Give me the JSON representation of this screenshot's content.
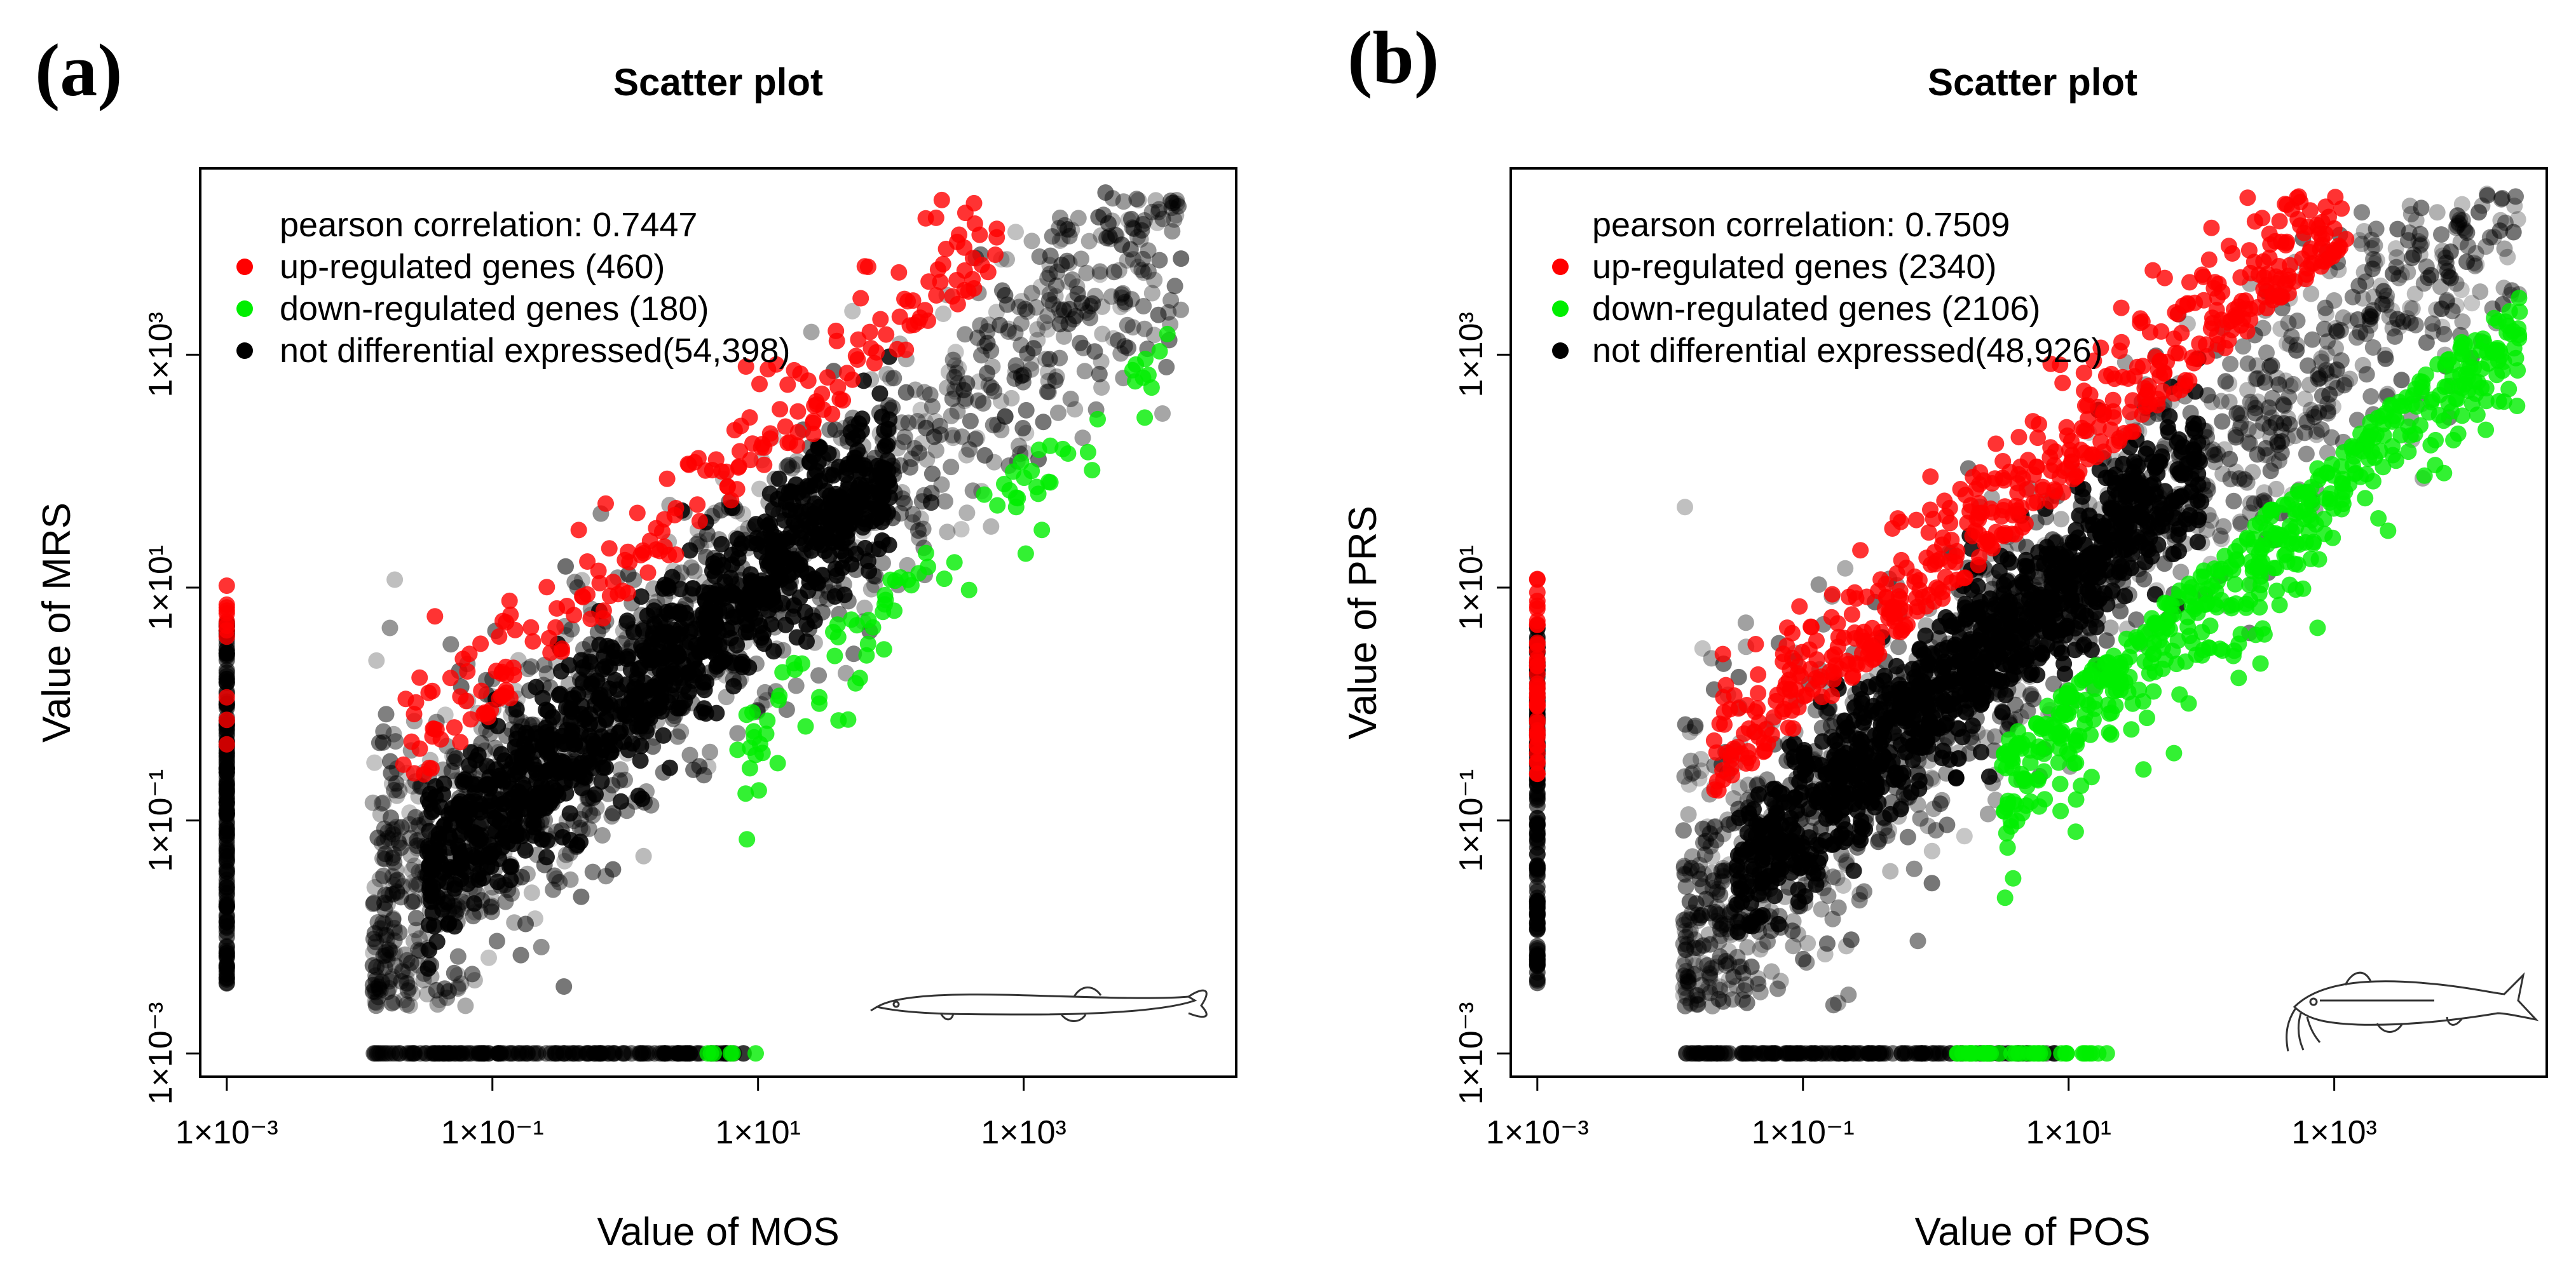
{
  "chart_data": [
    {
      "panel": "(a)",
      "type": "scatter",
      "title": "Scatter plot",
      "xlabel": "Value of MOS",
      "ylabel": "Value of MRS",
      "scale": "log10",
      "xlim_log10": [
        -3.2,
        4.6
      ],
      "ylim_log10": [
        -3.2,
        4.6
      ],
      "x_ticks": [
        {
          "value_log10": -3,
          "label": "1×10⁻³"
        },
        {
          "value_log10": -1,
          "label": "1×10⁻¹"
        },
        {
          "value_log10": 1,
          "label": "1×10¹"
        },
        {
          "value_log10": 3,
          "label": "1×10³"
        }
      ],
      "y_ticks": [
        {
          "value_log10": -3,
          "label": "1×10⁻³"
        },
        {
          "value_log10": -1,
          "label": "1×10⁻¹"
        },
        {
          "value_log10": 1,
          "label": "1×10¹"
        },
        {
          "value_log10": 3,
          "label": "1×10³"
        }
      ],
      "annotation": "pearson correlation: 0.7447",
      "pearson_correlation": 0.7447,
      "series": [
        {
          "name": "up-regulated genes (460)",
          "count": 460,
          "color": "#ff0000"
        },
        {
          "name": "down-regulated genes (180)",
          "count": 180,
          "color": "#00ee00"
        },
        {
          "name": "not differential expressed(54,398)",
          "count": 54398,
          "color": "#000000"
        }
      ],
      "cloud": {
        "x_range_log10": [
          -1.8,
          4.2
        ],
        "spread": 0.55,
        "up_offset": 0.9,
        "down_offset": 0.9
      },
      "fish": "eel-like loach"
    },
    {
      "panel": "(b)",
      "type": "scatter",
      "title": "Scatter plot",
      "xlabel": "Value of POS",
      "ylabel": "Value of PRS",
      "scale": "log10",
      "xlim_log10": [
        -3.2,
        4.6
      ],
      "ylim_log10": [
        -3.2,
        4.6
      ],
      "x_ticks": [
        {
          "value_log10": -3,
          "label": "1×10⁻³"
        },
        {
          "value_log10": -1,
          "label": "1×10⁻¹"
        },
        {
          "value_log10": 1,
          "label": "1×10¹"
        },
        {
          "value_log10": 3,
          "label": "1×10³"
        }
      ],
      "y_ticks": [
        {
          "value_log10": -3,
          "label": "1×10⁻³"
        },
        {
          "value_log10": -1,
          "label": "1×10⁻¹"
        },
        {
          "value_log10": 1,
          "label": "1×10¹"
        },
        {
          "value_log10": 3,
          "label": "1×10³"
        }
      ],
      "annotation": "pearson correlation: 0.7509",
      "pearson_correlation": 0.7509,
      "series": [
        {
          "name": "up-regulated genes (2340)",
          "count": 2340,
          "color": "#ff0000"
        },
        {
          "name": "down-regulated genes (2106)",
          "count": 2106,
          "color": "#00ee00"
        },
        {
          "name": "not differential expressed(48,926)",
          "count": 48926,
          "color": "#000000"
        }
      ],
      "cloud": {
        "x_range_log10": [
          -1.8,
          4.4
        ],
        "spread": 0.6,
        "up_offset": 0.85,
        "down_offset": 0.85
      },
      "fish": "catfish"
    }
  ]
}
